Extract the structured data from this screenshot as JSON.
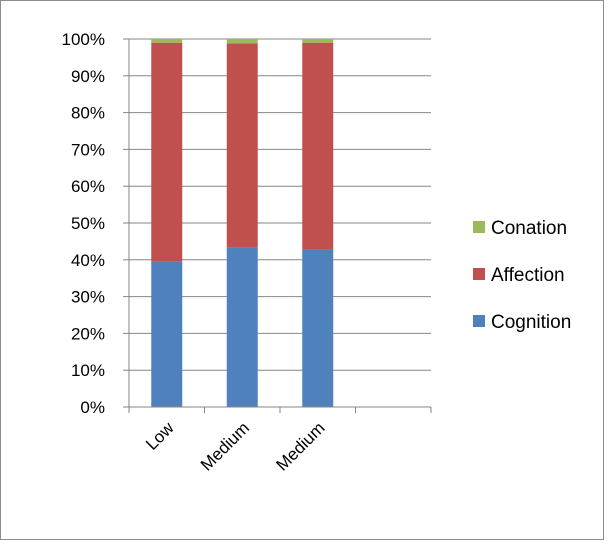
{
  "chart_data": {
    "type": "bar",
    "stacked": "percent",
    "categories": [
      "Low",
      "Medium",
      "Medium",
      ""
    ],
    "series": [
      {
        "name": "Cognition",
        "color": "#4f81bd",
        "values": [
          39.5,
          43.3,
          42.7,
          null
        ]
      },
      {
        "name": "Affection",
        "color": "#c0504d",
        "values": [
          59.5,
          55.5,
          56.3,
          null
        ]
      },
      {
        "name": "Conation",
        "color": "#9bbb59",
        "values": [
          1.0,
          1.2,
          1.0,
          null
        ]
      }
    ],
    "ylim": [
      0,
      100
    ],
    "y_ticks": [
      "0%",
      "10%",
      "20%",
      "30%",
      "40%",
      "50%",
      "60%",
      "70%",
      "80%",
      "90%",
      "100%"
    ],
    "grid": true,
    "legend": {
      "position": "right",
      "order": [
        "Conation",
        "Affection",
        "Cognition"
      ]
    }
  }
}
